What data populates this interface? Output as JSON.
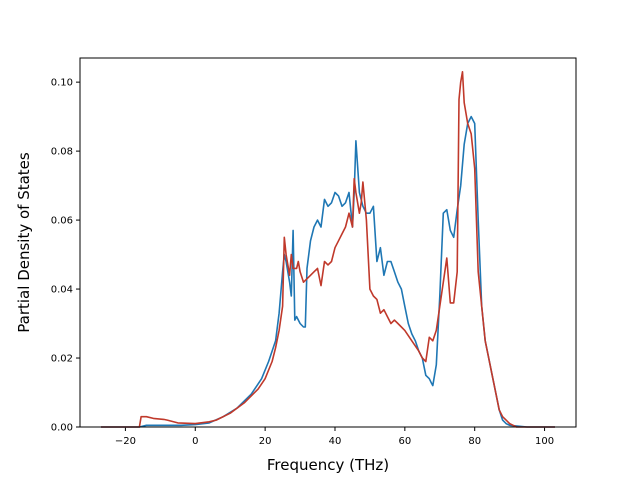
{
  "chart_data": {
    "type": "line",
    "xlabel": "Frequency (THz)",
    "ylabel": "Partial Density of States",
    "xlim": [
      -33,
      109
    ],
    "ylim": [
      0,
      0.107
    ],
    "xticks": [
      -20,
      0,
      20,
      40,
      60,
      80,
      100
    ],
    "yticks": [
      0.0,
      0.02,
      0.04,
      0.06,
      0.08,
      0.1
    ],
    "xtick_labels": [
      "−20",
      "0",
      "20",
      "40",
      "60",
      "80",
      "100"
    ],
    "ytick_labels": [
      "0.00",
      "0.02",
      "0.04",
      "0.06",
      "0.08",
      "0.10"
    ],
    "grid": false,
    "series": [
      {
        "color": "#1f77b4",
        "x": [
          -27,
          -16,
          -14,
          -8,
          -4,
          0,
          4,
          8,
          12,
          16,
          19,
          21,
          23,
          24,
          25,
          25.5,
          26,
          27,
          27.5,
          28,
          28.5,
          29,
          30,
          31,
          31.5,
          32,
          33,
          34,
          35,
          36,
          37,
          38,
          39,
          40,
          41,
          42,
          43,
          44,
          45,
          45.5,
          46,
          47,
          48,
          49,
          50,
          51,
          52,
          53,
          54,
          55,
          56,
          57,
          58,
          59,
          60,
          61,
          62,
          63,
          64,
          65,
          66,
          67,
          67.5,
          68,
          69,
          70,
          71,
          72,
          73,
          74,
          75,
          76,
          77,
          78,
          79,
          80,
          81,
          82,
          83,
          84,
          85,
          86,
          87,
          88,
          89,
          90,
          95,
          103
        ],
        "values": [
          0,
          0,
          0.0005,
          0.0005,
          0.0005,
          0.0007,
          0.0012,
          0.003,
          0.0055,
          0.0095,
          0.014,
          0.019,
          0.025,
          0.033,
          0.045,
          0.05,
          0.048,
          0.042,
          0.038,
          0.057,
          0.031,
          0.032,
          0.03,
          0.029,
          0.029,
          0.046,
          0.054,
          0.058,
          0.06,
          0.058,
          0.066,
          0.064,
          0.065,
          0.068,
          0.067,
          0.064,
          0.065,
          0.068,
          0.058,
          0.068,
          0.083,
          0.068,
          0.064,
          0.062,
          0.062,
          0.064,
          0.048,
          0.052,
          0.044,
          0.048,
          0.048,
          0.045,
          0.042,
          0.04,
          0.035,
          0.03,
          0.027,
          0.025,
          0.022,
          0.02,
          0.015,
          0.014,
          0.013,
          0.012,
          0.018,
          0.038,
          0.062,
          0.063,
          0.057,
          0.055,
          0.063,
          0.07,
          0.082,
          0.088,
          0.09,
          0.088,
          0.06,
          0.035,
          0.025,
          0.02,
          0.015,
          0.01,
          0.005,
          0.002,
          0.001,
          0.0005,
          0,
          0
        ]
      },
      {
        "color": "#c0392b",
        "x": [
          -27,
          -16,
          -15.5,
          -14,
          -12,
          -9,
          -8,
          -5,
          0,
          4,
          6,
          10,
          14,
          18,
          20,
          22,
          23,
          24,
          25,
          25.5,
          26,
          27,
          27.5,
          28,
          29,
          29.5,
          30,
          31,
          33,
          34,
          35,
          36,
          37,
          38,
          39,
          40,
          41,
          42,
          43,
          44,
          45,
          45.5,
          46,
          47,
          47.5,
          48,
          49,
          50,
          51,
          52,
          53,
          54,
          55,
          56,
          57,
          58,
          60,
          62,
          64,
          65,
          66,
          67,
          68,
          69,
          70,
          71,
          72,
          73,
          74,
          75,
          75.5,
          76,
          76.5,
          77,
          78,
          79,
          80,
          81,
          82,
          83,
          84,
          85,
          86,
          87,
          88,
          89,
          90,
          91,
          92,
          95,
          103
        ],
        "values": [
          0,
          0,
          0.003,
          0.003,
          0.0025,
          0.0022,
          0.002,
          0.0012,
          0.001,
          0.0015,
          0.002,
          0.004,
          0.007,
          0.011,
          0.014,
          0.019,
          0.023,
          0.028,
          0.035,
          0.055,
          0.05,
          0.044,
          0.05,
          0.046,
          0.046,
          0.048,
          0.045,
          0.042,
          0.044,
          0.045,
          0.046,
          0.041,
          0.048,
          0.047,
          0.048,
          0.052,
          0.054,
          0.056,
          0.058,
          0.062,
          0.058,
          0.072,
          0.068,
          0.062,
          0.065,
          0.071,
          0.06,
          0.04,
          0.038,
          0.037,
          0.033,
          0.034,
          0.032,
          0.03,
          0.031,
          0.03,
          0.028,
          0.025,
          0.022,
          0.02,
          0.019,
          0.026,
          0.025,
          0.028,
          0.035,
          0.042,
          0.049,
          0.036,
          0.036,
          0.045,
          0.095,
          0.1,
          0.103,
          0.094,
          0.088,
          0.085,
          0.075,
          0.045,
          0.035,
          0.025,
          0.02,
          0.015,
          0.01,
          0.005,
          0.003,
          0.002,
          0.001,
          0.0005,
          0,
          0,
          0
        ]
      }
    ]
  }
}
